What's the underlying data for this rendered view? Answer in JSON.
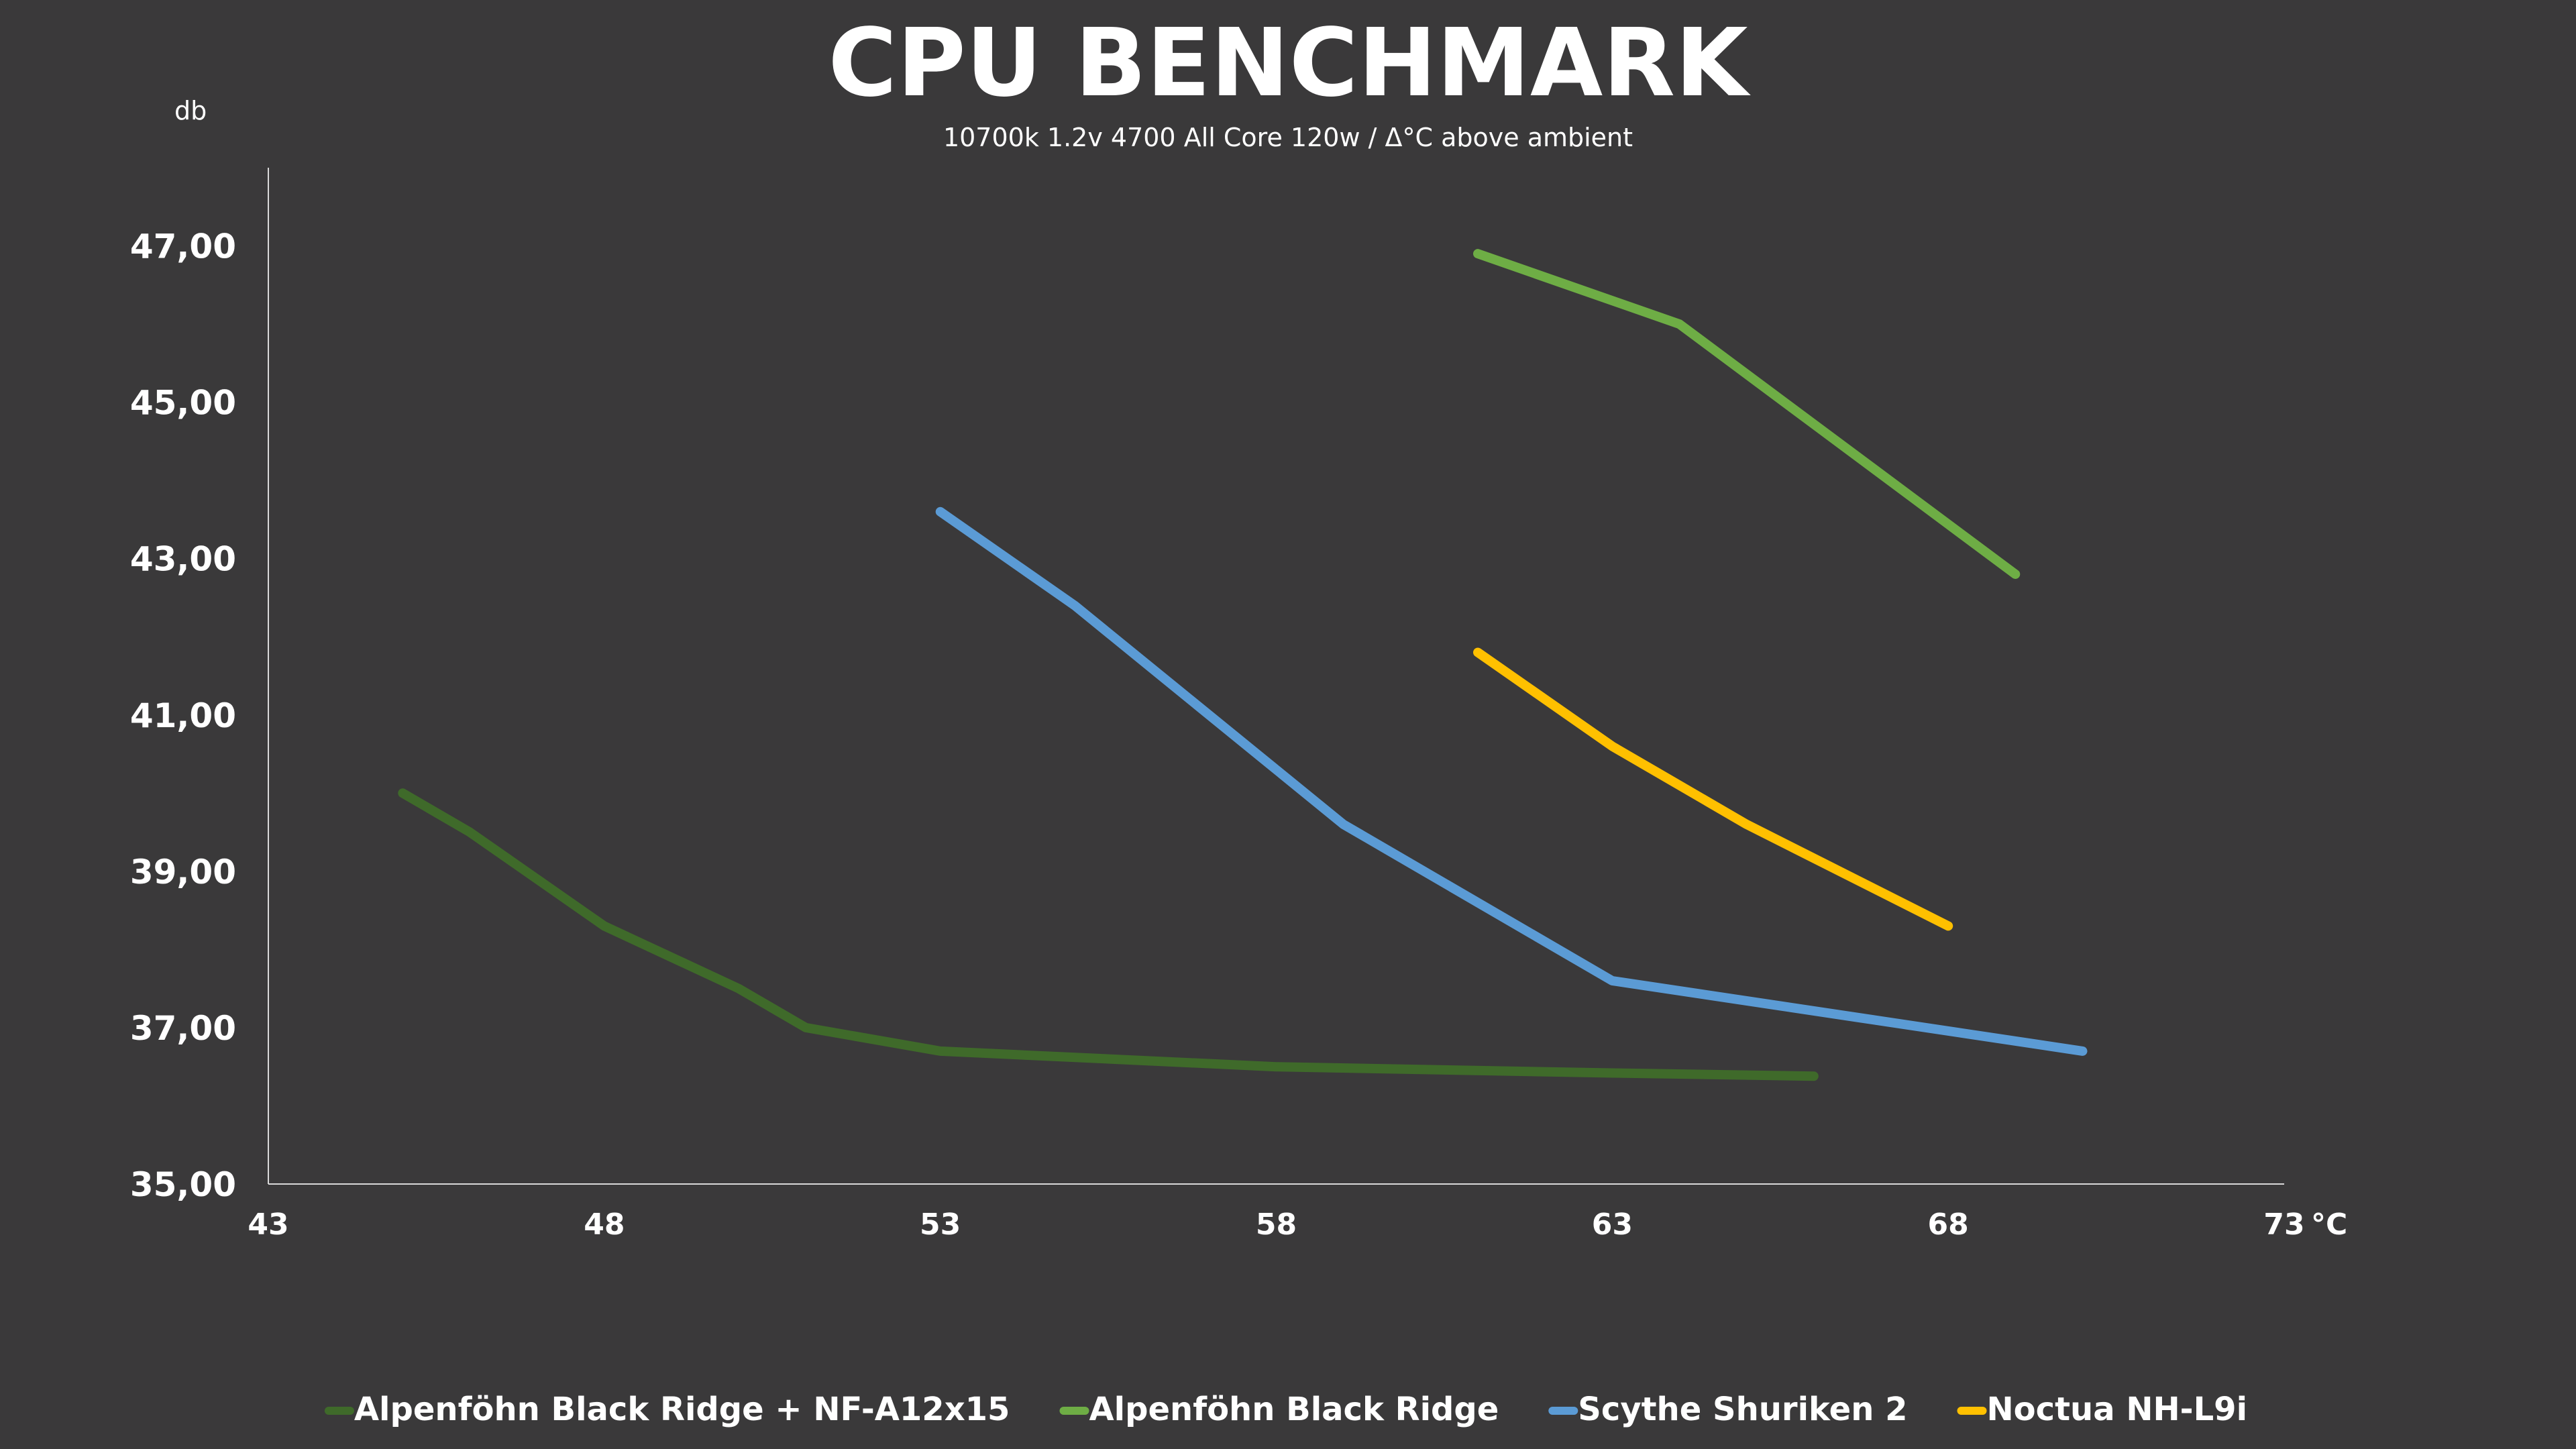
{
  "chart_data": {
    "type": "line",
    "title": "CPU BENCHMARK",
    "subtitle": "10700k  1.2v  4700  All Core  120w  /   Δ°C  above  ambient",
    "ylabel": "db",
    "xlabel": "°C",
    "xlim": [
      43,
      73
    ],
    "ylim": [
      35,
      48
    ],
    "x_ticks": [
      43,
      48,
      53,
      58,
      63,
      68,
      73
    ],
    "x_tick_labels": [
      "43",
      "48",
      "53",
      "58",
      "63",
      "68",
      "73"
    ],
    "y_ticks": [
      35,
      37,
      39,
      41,
      43,
      45,
      47
    ],
    "y_tick_labels": [
      "35,00",
      "37,00",
      "39,00",
      "41,00",
      "43,00",
      "45,00",
      "47,00"
    ],
    "grid": false,
    "legend_position": "bottom",
    "series": [
      {
        "name": "Alpenföhn Black Ridge + NF-A12x15",
        "color": "#3f6a2a",
        "x": [
          45,
          46,
          48,
          50,
          51,
          53,
          58,
          63,
          66
        ],
        "y": [
          40.0,
          39.5,
          38.3,
          37.5,
          37.0,
          36.7,
          36.5,
          36.42,
          36.38
        ]
      },
      {
        "name": "Alpenföhn Black Ridge",
        "color": "#6ead45",
        "x": [
          61,
          64,
          69
        ],
        "y": [
          46.9,
          46.0,
          42.8
        ]
      },
      {
        "name": "Scythe Shuriken 2",
        "color": "#5b9bd5",
        "x": [
          53,
          55,
          59,
          63,
          70
        ],
        "y": [
          43.6,
          42.4,
          39.6,
          37.6,
          36.7
        ]
      },
      {
        "name": "Noctua NH-L9i",
        "color": "#ffc000",
        "x": [
          61,
          63,
          65,
          68
        ],
        "y": [
          41.8,
          40.6,
          39.6,
          38.3
        ]
      }
    ]
  }
}
